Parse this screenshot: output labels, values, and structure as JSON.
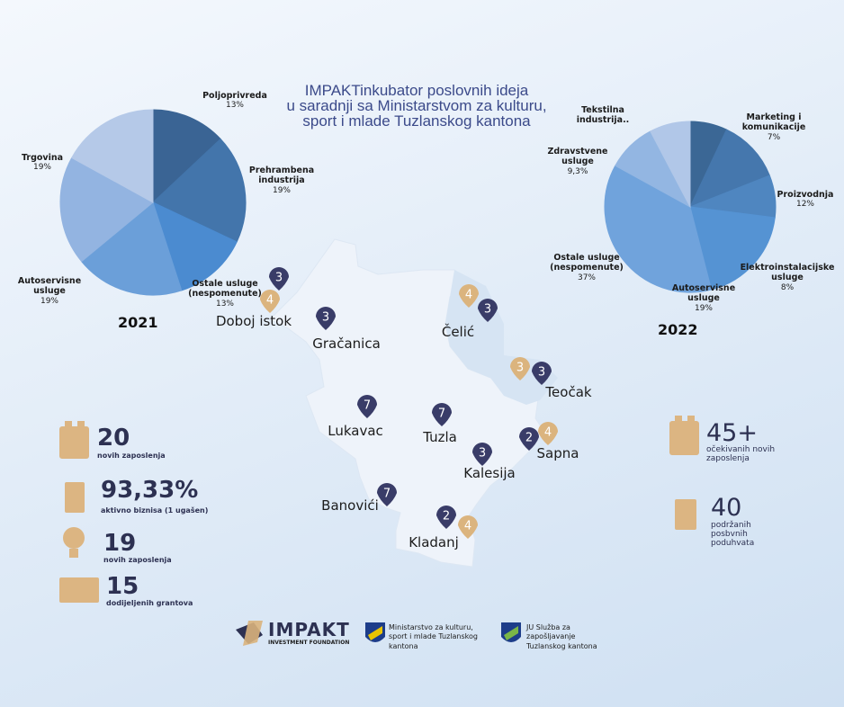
{
  "title": [
    "IMPAKTinkubator poslovnih ideja",
    "u saradnji sa Ministarstvom za kulturu,",
    "sport i mlade Tuzlanskog kantona"
  ],
  "chart_data": [
    {
      "type": "pie",
      "label": "2021",
      "categories": [
        "Poljoprivreda",
        "Prehrambena industrija",
        "Ostale usluge (nespomenute)",
        "Autoservisne usluge",
        "Trgovina",
        null
      ],
      "values": [
        13,
        19,
        13,
        19,
        19,
        17
      ],
      "value_labels": [
        "13%",
        "19%",
        "13%",
        "19%",
        "19%",
        null
      ],
      "colors": [
        "#3a6494",
        "#4375ab",
        "#4b8bd0",
        "#6b9fd9",
        "#93b4e1",
        "#b5c9e8"
      ]
    },
    {
      "type": "pie",
      "label": "2022",
      "categories": [
        "Marketing i komunikacije",
        "Proizvodnja",
        "Elektroinstalacijske usluge",
        "Autoservisne usluge",
        "Ostale usluge (nespomenute)",
        "Zdravstvene usluge",
        "Tekstilna industrija.."
      ],
      "values": [
        7,
        12,
        8,
        19,
        37,
        9.3,
        7.7
      ],
      "value_labels": [
        "7%",
        "12%",
        "8%",
        "19%",
        "37%",
        "9,3%",
        null
      ],
      "colors": [
        "#3b6795",
        "#4577ad",
        "#4f86c0",
        "#5593d3",
        "#70a3dc",
        "#93b6e2",
        "#b1c7e8"
      ]
    }
  ],
  "map": {
    "towns": [
      {
        "name": "Doboj istok",
        "navy": "3",
        "gold": "4"
      },
      {
        "name": "Gračanica",
        "navy": "3"
      },
      {
        "name": "Čelić",
        "navy": "3",
        "gold": "4"
      },
      {
        "name": "Teočak",
        "navy": "3",
        "gold": "3"
      },
      {
        "name": "Lukavac",
        "navy": "7"
      },
      {
        "name": "Tuzla",
        "navy": "7"
      },
      {
        "name": "Sapna",
        "navy": "2",
        "gold": "4"
      },
      {
        "name": "Kalesija",
        "navy": "3"
      },
      {
        "name": "Banovići",
        "navy": "7"
      },
      {
        "name": "Kladanj",
        "navy": "2",
        "gold": "4"
      }
    ]
  },
  "stats_left": [
    {
      "value": "20",
      "label": "novih zaposlenja"
    },
    {
      "value": "93,33%",
      "label": "aktivno biznisa (1 ugašen)"
    },
    {
      "value": "19",
      "label": "novih zaposlenja"
    },
    {
      "value": "15",
      "label": "dodijeljenih grantova"
    }
  ],
  "stats_right": [
    {
      "value": "45+",
      "label": "očekivanih novih zaposlenja"
    },
    {
      "value": "40",
      "label": "podržanih posbvnih poduhvata"
    }
  ],
  "logos": {
    "impakt": "IMPAKT",
    "impakt_sub": "INVESTMENT FOUNDATION",
    "ministry": "Ministarstvo za kulturu, sport i mlade Tuzlanskog kantona",
    "service": "JU Služba za zapošljavanje Tuzlanskog kantona"
  }
}
